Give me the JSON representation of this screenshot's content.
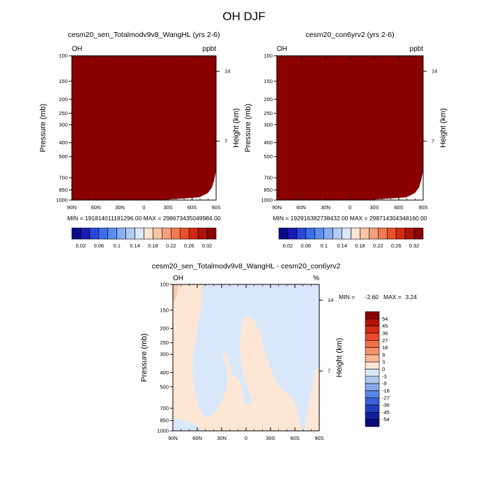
{
  "page_title": "OH DJF",
  "chart_data": [
    {
      "type": "heatmap",
      "title": "cesm20_sen_Totalmodv9v8_WangHL (yrs 2-6)",
      "variable_label": "OH",
      "units_label": "ppbt",
      "ylabel": "Pressure (mb)",
      "right_ylabel": "Height (km)",
      "x_ticks": [
        "90N",
        "60N",
        "30N",
        "0",
        "30S",
        "60S",
        "90S"
      ],
      "y_ticks": [
        "100",
        "150",
        "200",
        "250",
        "300",
        "400",
        "500",
        "700",
        "850",
        "1000"
      ],
      "right_ticks": [
        "14",
        "7"
      ],
      "field_color": "#8a0000",
      "min_max_text": "MIN = 191814011191296.00   MAX = 298673435049984.00",
      "colorbar_labels": [
        "0.02",
        "0.06",
        "0.1",
        "0.14",
        "0.18",
        "0.22",
        "0.26",
        "0.32"
      ],
      "colorbar_colors": [
        "#0a0a8a",
        "#1a1ab4",
        "#2a48d8",
        "#3a6eea",
        "#5a8ef0",
        "#8aaef2",
        "#b4ccf4",
        "#dce8f8",
        "#fbe4d2",
        "#f8c4a4",
        "#f5a07a",
        "#f07a52",
        "#e8502c",
        "#d42a14",
        "#b01208",
        "#8a0000"
      ]
    },
    {
      "type": "heatmap",
      "title": "cesm20_con6yrv2 (yrs 2-6)",
      "variable_label": "OH",
      "units_label": "ppbt",
      "ylabel": "Pressure (mb)",
      "right_ylabel": "Height (km)",
      "x_ticks": [
        "90N",
        "60N",
        "30N",
        "0",
        "30S",
        "60S",
        "90S"
      ],
      "y_ticks": [
        "100",
        "150",
        "200",
        "250",
        "300",
        "400",
        "500",
        "700",
        "850",
        "1000"
      ],
      "right_ticks": [
        "14",
        "7"
      ],
      "field_color": "#8a0000",
      "min_max_text": "MIN = 192816382738432.00   MAX = 298714304348160.00",
      "colorbar_labels": [
        "0.02",
        "0.06",
        "0.1",
        "0.14",
        "0.18",
        "0.22",
        "0.26",
        "0.32"
      ],
      "colorbar_colors": [
        "#0a0a8a",
        "#1a1ab4",
        "#2a48d8",
        "#3a6eea",
        "#5a8ef0",
        "#8aaef2",
        "#b4ccf4",
        "#dce8f8",
        "#fbe4d2",
        "#f8c4a4",
        "#f5a07a",
        "#f07a52",
        "#e8502c",
        "#d42a14",
        "#b01208",
        "#8a0000"
      ]
    },
    {
      "type": "heatmap",
      "title": "cesm20_sen_Totalmodv9v8_WangHL - cesm20_con6yrv2",
      "variable_label": "OH",
      "units_label": "%",
      "ylabel": "Pressure (mb)",
      "right_ylabel": "Height (km)",
      "x_ticks": [
        "90N",
        "60N",
        "30N",
        "0",
        "30S",
        "60S",
        "90S"
      ],
      "y_ticks": [
        "100",
        "150",
        "200",
        "250",
        "300",
        "400",
        "500",
        "700",
        "850",
        "1000"
      ],
      "right_ticks": [
        "14",
        "7"
      ],
      "min_value_label": "MIN =",
      "min_value": "-2.60",
      "max_value_label": "MAX =",
      "max_value": "3.24",
      "positive_color": "#fde6d6",
      "negative_color": "#d8e8fa",
      "colorbar_labels": [
        "54",
        "45",
        "36",
        "27",
        "18",
        "9",
        "3",
        "0",
        "-3",
        "-9",
        "-18",
        "-27",
        "-36",
        "-45",
        "-54"
      ],
      "colorbar_colors": [
        "#8a0000",
        "#b41208",
        "#d42a14",
        "#e84a2a",
        "#f07048",
        "#f5946c",
        "#f8b898",
        "#fde6d6",
        "#d8e8fa",
        "#b0c8f0",
        "#88a8ec",
        "#5a86e8",
        "#3a60dc",
        "#2040c0",
        "#1020a0",
        "#0a0a7a"
      ]
    }
  ]
}
